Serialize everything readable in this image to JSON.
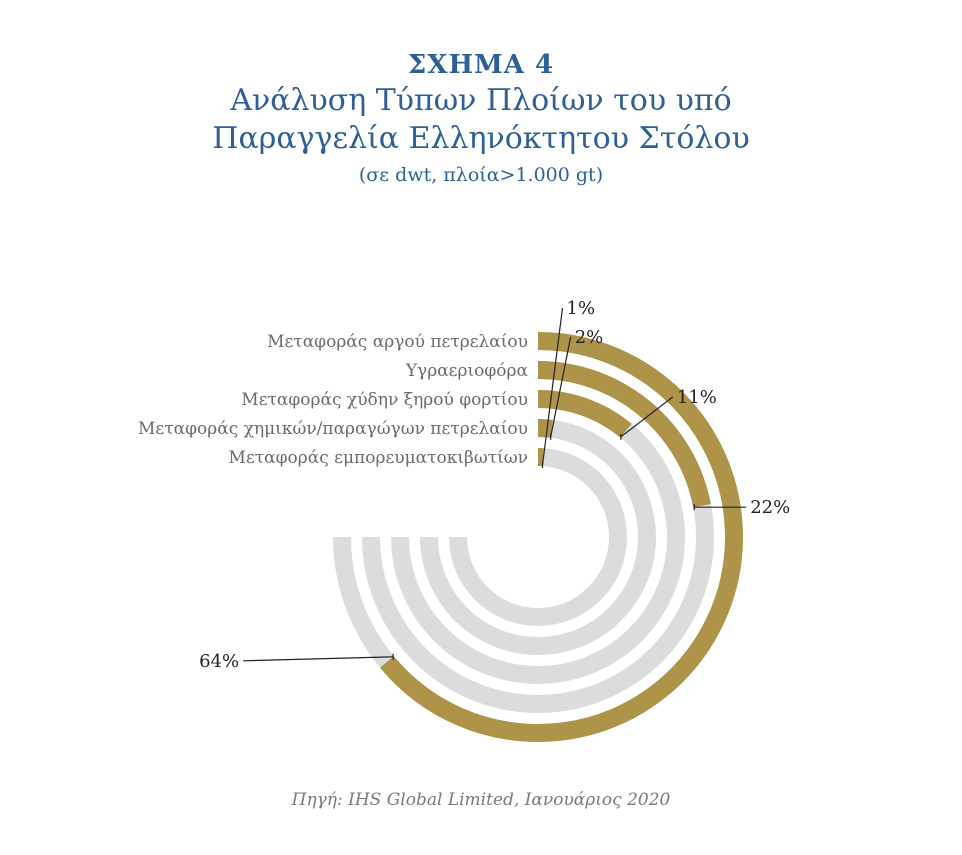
{
  "header": {
    "figure_label": "ΣΧΗΜΑ 4",
    "title_line1": "Ανάλυση Τύπων Πλοίων του υπό",
    "title_line2": "Παραγγελία Ελληνόκτητου Στόλου",
    "subtitle": "(σε dwt, πλοία>1.000 gt)"
  },
  "chart_data": {
    "type": "radial-bar",
    "title": "Ανάλυση Τύπων Πλοίων του υπό Παραγγελία Ελληνόκτητου Στόλου",
    "subtitle": "(σε dwt, πλοία>1.000 gt)",
    "unit": "%",
    "max_value": 75,
    "categories": [
      "Μεταφοράς αργού πετρελαίου",
      "Υγραεριοφόρα",
      "Μεταφοράς χύδην ξηρού φορτίου",
      "Μεταφοράς χημικών/παραγώγων πετρελαίου",
      "Μεταφοράς εμπορευματοκιβωτίων"
    ],
    "values": [
      64,
      22,
      11,
      2,
      1
    ],
    "value_labels": [
      "64%",
      "22%",
      "11%",
      "2%",
      "1%"
    ],
    "colors": {
      "value": "#ae9448",
      "track": "#dcdcdc",
      "title": "#2e5f97"
    }
  },
  "footer": {
    "source": "Πηγή: IHS Global Limited, Ιανουάριος 2020"
  }
}
